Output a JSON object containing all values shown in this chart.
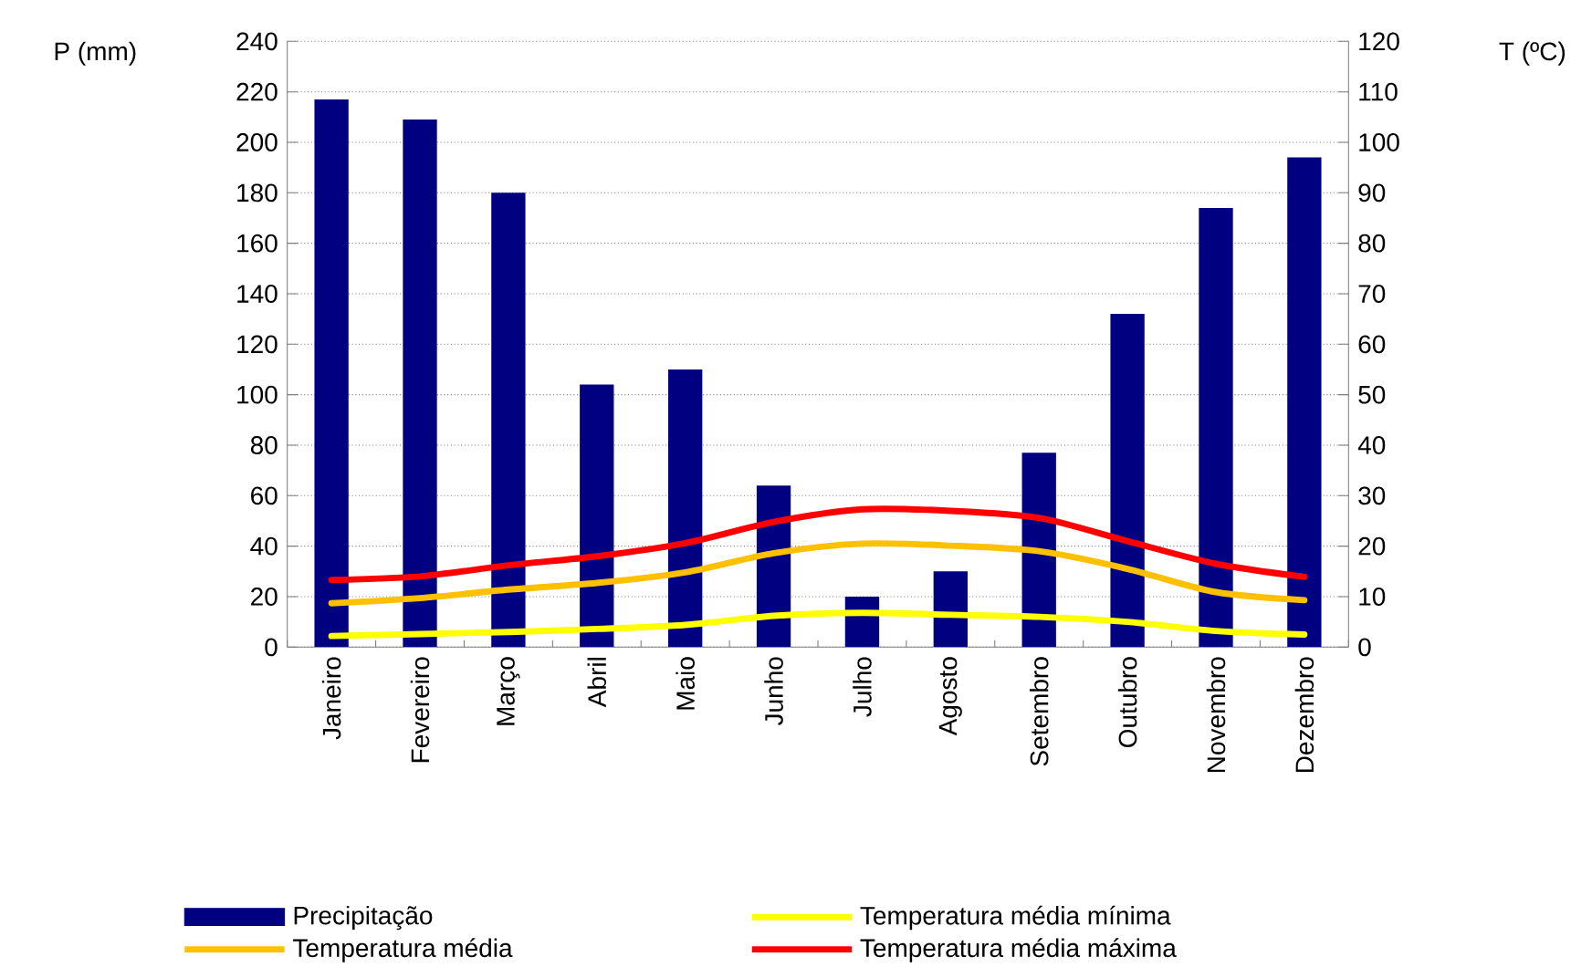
{
  "chart_data": {
    "type": "bar",
    "ylabel": "P (mm)",
    "y2label": "T (ºC)",
    "categories": [
      "Janeiro",
      "Fevereiro",
      "Março",
      "Abril",
      "Maio",
      "Junho",
      "Julho",
      "Agosto",
      "Setembro",
      "Outubro",
      "Novembro",
      "Dezembro"
    ],
    "series": [
      {
        "name": "Precipitação",
        "color": "#000080",
        "values": [
          217,
          209,
          180,
          104,
          110,
          64,
          20,
          30,
          77,
          132,
          174,
          194
        ]
      },
      {
        "name": "Temperatura média mínima",
        "type": "line",
        "axis": "y2",
        "color": "#ffff00",
        "values": [
          2.2,
          2.6,
          3,
          3.6,
          4.4,
          6.2,
          6.8,
          6.4,
          6,
          5,
          3.2,
          2.5
        ]
      },
      {
        "name": "Temperatura média",
        "type": "line",
        "axis": "y2",
        "color": "#ffc000",
        "values": [
          8.7,
          9.7,
          11.4,
          12.7,
          14.8,
          18.6,
          20.5,
          20.1,
          19,
          15.5,
          10.9,
          9.3
        ]
      },
      {
        "name": "Temperatura média máxima",
        "type": "line",
        "axis": "y2",
        "color": "#ff0000",
        "values": [
          13.3,
          14,
          16.2,
          18,
          20.6,
          24.8,
          27.3,
          27,
          25.6,
          21,
          16.5,
          13.9
        ]
      }
    ],
    "ylim": [
      0,
      240
    ],
    "yticks": [
      0,
      20,
      40,
      60,
      80,
      100,
      120,
      140,
      160,
      180,
      200,
      220,
      240
    ],
    "y2lim": [
      0,
      120
    ],
    "y2ticks": [
      0,
      10,
      20,
      30,
      40,
      50,
      60,
      70,
      80,
      90,
      100,
      110,
      120
    ],
    "grid": "y",
    "legend": "bottom",
    "marker": "none",
    "line_style": "solid"
  }
}
